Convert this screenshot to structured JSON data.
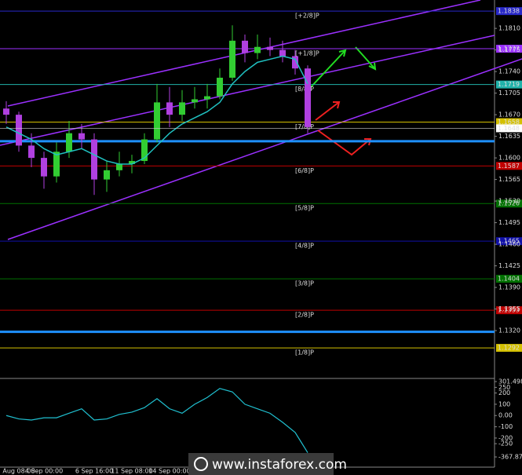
{
  "chart_data": [
    {
      "type": "candlestick",
      "x": [
        null,
        "Aug 08:00",
        null,
        "4 Sep 00:00",
        null,
        null,
        null,
        "6 Sep 16:00",
        null,
        null,
        "11 Sep 08:00",
        null,
        null,
        "14 Sep 00:00",
        null,
        null,
        null,
        null,
        null,
        null,
        null,
        null,
        null,
        null,
        null
      ],
      "open": [
        1.168,
        1.167,
        1.162,
        1.16,
        1.157,
        1.161,
        1.164,
        1.163,
        1.1565,
        1.158,
        1.159,
        1.1595,
        1.163,
        1.169,
        1.167,
        1.169,
        1.1695,
        1.17,
        1.173,
        1.179,
        1.177,
        1.178,
        1.1775,
        1.1765,
        1.1745
      ],
      "high": [
        1.1692,
        1.1675,
        1.164,
        1.161,
        1.1625,
        1.166,
        1.1655,
        1.164,
        1.1595,
        1.161,
        1.1605,
        1.164,
        1.172,
        1.1715,
        1.171,
        1.1715,
        1.172,
        1.1745,
        1.1815,
        1.18,
        1.18,
        1.1795,
        1.179,
        1.1775,
        1.175
      ],
      "low": [
        1.1655,
        1.161,
        1.1585,
        1.155,
        1.156,
        1.16,
        1.1615,
        1.154,
        1.1545,
        1.157,
        1.1575,
        1.159,
        1.1625,
        1.165,
        1.166,
        1.168,
        1.168,
        1.1695,
        1.1725,
        1.1755,
        1.176,
        1.1765,
        1.1755,
        1.1735,
        1.164
      ],
      "close": [
        1.167,
        1.162,
        1.16,
        1.157,
        1.161,
        1.164,
        1.163,
        1.1565,
        1.158,
        1.159,
        1.1595,
        1.163,
        1.169,
        1.167,
        1.169,
        1.1695,
        1.17,
        1.173,
        1.179,
        1.177,
        1.178,
        1.1775,
        1.1765,
        1.1745,
        1.165
      ],
      "up_color": "#32cd32",
      "down_color": "#b040e0",
      "series": [
        {
          "color": "#20c0c0",
          "values": [
            1.165,
            1.164,
            1.163,
            1.1615,
            1.1605,
            1.161,
            1.1615,
            1.1605,
            1.1595,
            1.159,
            1.159,
            1.16,
            1.162,
            1.164,
            1.1655,
            1.1665,
            1.1675,
            1.169,
            1.172,
            1.174,
            1.1755,
            1.176,
            1.1765,
            1.176,
            1.172
          ]
        }
      ],
      "ylim": [
        1.1245,
        1.1856
      ],
      "yticks": [
        {
          "value": 1.181,
          "label": "1.1810"
        },
        1.1775,
        {
          "value": 1.174,
          "label": "1.1740"
        },
        1.1705,
        {
          "value": 1.167,
          "label": "1.1670"
        },
        1.1635,
        {
          "value": 1.16,
          "label": "1.1600"
        },
        1.1565,
        {
          "value": 1.153,
          "label": "1.1530"
        },
        1.1495,
        {
          "value": 1.146,
          "label": "1.1460"
        },
        1.1425,
        {
          "value": 1.139,
          "label": "1.1390"
        },
        1.1355,
        {
          "value": 1.132,
          "label": "1.1320"
        }
      ],
      "levels": [
        {
          "value": 1.1838,
          "color": "#2828c8",
          "tag": "[+2/8]P"
        },
        {
          "value": 1.1777,
          "color": "#9b30ff",
          "tag": "[+1/8]P"
        },
        {
          "value": 1.1719,
          "color": "#20b2aa",
          "tag": "[8/8]P"
        },
        {
          "value": 1.1658,
          "color": "#d4c000",
          "tag": "[7/8]P"
        },
        {
          "value": 1.1587,
          "color": "#c00000",
          "tag": "[6/8]P"
        },
        {
          "value": 1.1526,
          "color": "#007000",
          "tag": "[5/8]P"
        },
        {
          "value": 1.1465,
          "color": "#1010a8",
          "tag": "[4/8]P"
        },
        {
          "value": 1.1404,
          "color": "#007000",
          "tag": "[3/8]P"
        },
        {
          "value": 1.1353,
          "color": "#c00000",
          "tag": "[2/8]P"
        },
        {
          "value": 1.1292,
          "color": "#d4c000",
          "tag": "[1/8]P"
        }
      ],
      "lines": [
        {
          "value": 1.1627,
          "color": "#1e90ff"
        },
        {
          "value": 1.1318,
          "color": "#1e90ff"
        }
      ],
      "last_price": 1.1648
    },
    {
      "type": "line",
      "series": [
        {
          "color": "#20c0d0",
          "values": [
            0,
            -30,
            -40,
            -20,
            -20,
            20,
            60,
            -40,
            -30,
            10,
            30,
            70,
            150,
            60,
            20,
            100,
            160,
            240,
            210,
            100,
            60,
            20,
            -60,
            -150,
            -330
          ]
        }
      ],
      "ylim": [
        -367.87,
        301.498
      ],
      "yticks": [
        301.498,
        250,
        200,
        100,
        {
          "value": 0,
          "label": "0.00"
        },
        -100,
        -200,
        -250,
        {
          "value": -367.87,
          "label": "-367.870"
        }
      ]
    }
  ],
  "watermark": "www.instaforex.com"
}
